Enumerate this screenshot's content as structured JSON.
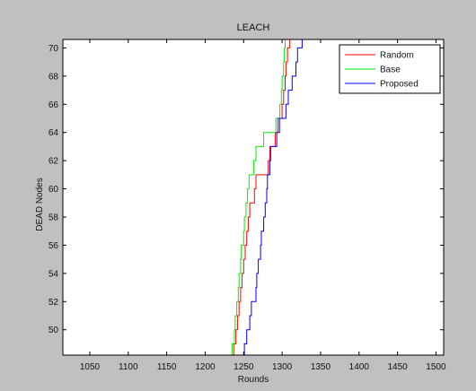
{
  "chart_data": {
    "type": "line",
    "title": "LEACH",
    "xlabel": "Rounds",
    "ylabel": "DEAD Nodes",
    "xlim": [
      1015,
      1510
    ],
    "ylim": [
      48.2,
      70.6
    ],
    "xticks": [
      1050,
      1100,
      1150,
      1200,
      1250,
      1300,
      1350,
      1400,
      1450,
      1500
    ],
    "yticks": [
      50,
      52,
      54,
      56,
      58,
      60,
      62,
      64,
      66,
      68,
      70
    ],
    "legend_position": "top-right",
    "background_color": "#c0c0c0",
    "plot_background_color": "#ffffff",
    "grid": false,
    "series": [
      {
        "name": "Random",
        "color": "#ff0000",
        "points": [
          [
            1237,
            48.2
          ],
          [
            1237,
            49
          ],
          [
            1240,
            49
          ],
          [
            1240,
            50
          ],
          [
            1242,
            50
          ],
          [
            1242,
            51
          ],
          [
            1244,
            51
          ],
          [
            1244,
            52
          ],
          [
            1246,
            52
          ],
          [
            1246,
            53
          ],
          [
            1248,
            53
          ],
          [
            1248,
            54
          ],
          [
            1250,
            54
          ],
          [
            1250,
            55
          ],
          [
            1252,
            55
          ],
          [
            1252,
            56
          ],
          [
            1254,
            56
          ],
          [
            1254,
            57
          ],
          [
            1256,
            57
          ],
          [
            1256,
            58
          ],
          [
            1258,
            58
          ],
          [
            1258,
            59
          ],
          [
            1264,
            59
          ],
          [
            1264,
            60
          ],
          [
            1266,
            60
          ],
          [
            1266,
            61
          ],
          [
            1282,
            61
          ],
          [
            1282,
            62
          ],
          [
            1284,
            62
          ],
          [
            1284,
            63
          ],
          [
            1291,
            63
          ],
          [
            1291,
            64
          ],
          [
            1297,
            64
          ],
          [
            1297,
            65
          ],
          [
            1300,
            65
          ],
          [
            1300,
            66
          ],
          [
            1302,
            66
          ],
          [
            1302,
            67
          ],
          [
            1304,
            67
          ],
          [
            1304,
            68
          ],
          [
            1305,
            68
          ],
          [
            1305,
            69
          ],
          [
            1307,
            69
          ],
          [
            1307,
            70
          ],
          [
            1310,
            70
          ],
          [
            1310,
            70.6
          ]
        ]
      },
      {
        "name": "Base",
        "color": "#00ee00",
        "points": [
          [
            1235,
            48.2
          ],
          [
            1235,
            49
          ],
          [
            1238,
            49
          ],
          [
            1238,
            50
          ],
          [
            1239,
            50
          ],
          [
            1239,
            51
          ],
          [
            1241,
            51
          ],
          [
            1241,
            52
          ],
          [
            1243,
            52
          ],
          [
            1243,
            53
          ],
          [
            1244,
            53
          ],
          [
            1244,
            54
          ],
          [
            1246,
            54
          ],
          [
            1246,
            55
          ],
          [
            1247,
            55
          ],
          [
            1247,
            56
          ],
          [
            1250,
            56
          ],
          [
            1250,
            57
          ],
          [
            1251,
            57
          ],
          [
            1251,
            58
          ],
          [
            1253,
            58
          ],
          [
            1253,
            59
          ],
          [
            1255,
            59
          ],
          [
            1255,
            60
          ],
          [
            1257,
            60
          ],
          [
            1257,
            61
          ],
          [
            1263,
            61
          ],
          [
            1263,
            62
          ],
          [
            1266,
            62
          ],
          [
            1266,
            63
          ],
          [
            1276,
            63
          ],
          [
            1276,
            64
          ],
          [
            1292,
            64
          ],
          [
            1292,
            65
          ],
          [
            1297,
            65
          ],
          [
            1297,
            66
          ],
          [
            1299,
            66
          ],
          [
            1299,
            67
          ],
          [
            1300,
            67
          ],
          [
            1300,
            68
          ],
          [
            1302,
            68
          ],
          [
            1302,
            69
          ],
          [
            1303,
            69
          ],
          [
            1303,
            70
          ],
          [
            1304,
            70
          ],
          [
            1304,
            70.6
          ]
        ]
      },
      {
        "name": "Proposed",
        "color": "#0000ff",
        "points": [
          [
            1251,
            48.2
          ],
          [
            1251,
            49
          ],
          [
            1254,
            49
          ],
          [
            1254,
            50
          ],
          [
            1258,
            50
          ],
          [
            1258,
            51
          ],
          [
            1260,
            51
          ],
          [
            1260,
            52
          ],
          [
            1266,
            52
          ],
          [
            1266,
            53
          ],
          [
            1267,
            53
          ],
          [
            1267,
            54
          ],
          [
            1269,
            54
          ],
          [
            1269,
            55
          ],
          [
            1272,
            55
          ],
          [
            1272,
            56
          ],
          [
            1273,
            56
          ],
          [
            1273,
            57
          ],
          [
            1276,
            57
          ],
          [
            1276,
            58
          ],
          [
            1278,
            58
          ],
          [
            1278,
            59
          ],
          [
            1280,
            59
          ],
          [
            1280,
            60
          ],
          [
            1281,
            60
          ],
          [
            1281,
            61
          ],
          [
            1284,
            61
          ],
          [
            1284,
            62
          ],
          [
            1285,
            62
          ],
          [
            1285,
            63
          ],
          [
            1293,
            63
          ],
          [
            1293,
            64
          ],
          [
            1295,
            64
          ],
          [
            1295,
            65
          ],
          [
            1305,
            65
          ],
          [
            1305,
            66
          ],
          [
            1308,
            66
          ],
          [
            1308,
            67
          ],
          [
            1313,
            67
          ],
          [
            1313,
            68
          ],
          [
            1318,
            68
          ],
          [
            1318,
            69
          ],
          [
            1320,
            69
          ],
          [
            1320,
            70
          ],
          [
            1326,
            70
          ],
          [
            1326,
            70.6
          ]
        ]
      }
    ]
  }
}
